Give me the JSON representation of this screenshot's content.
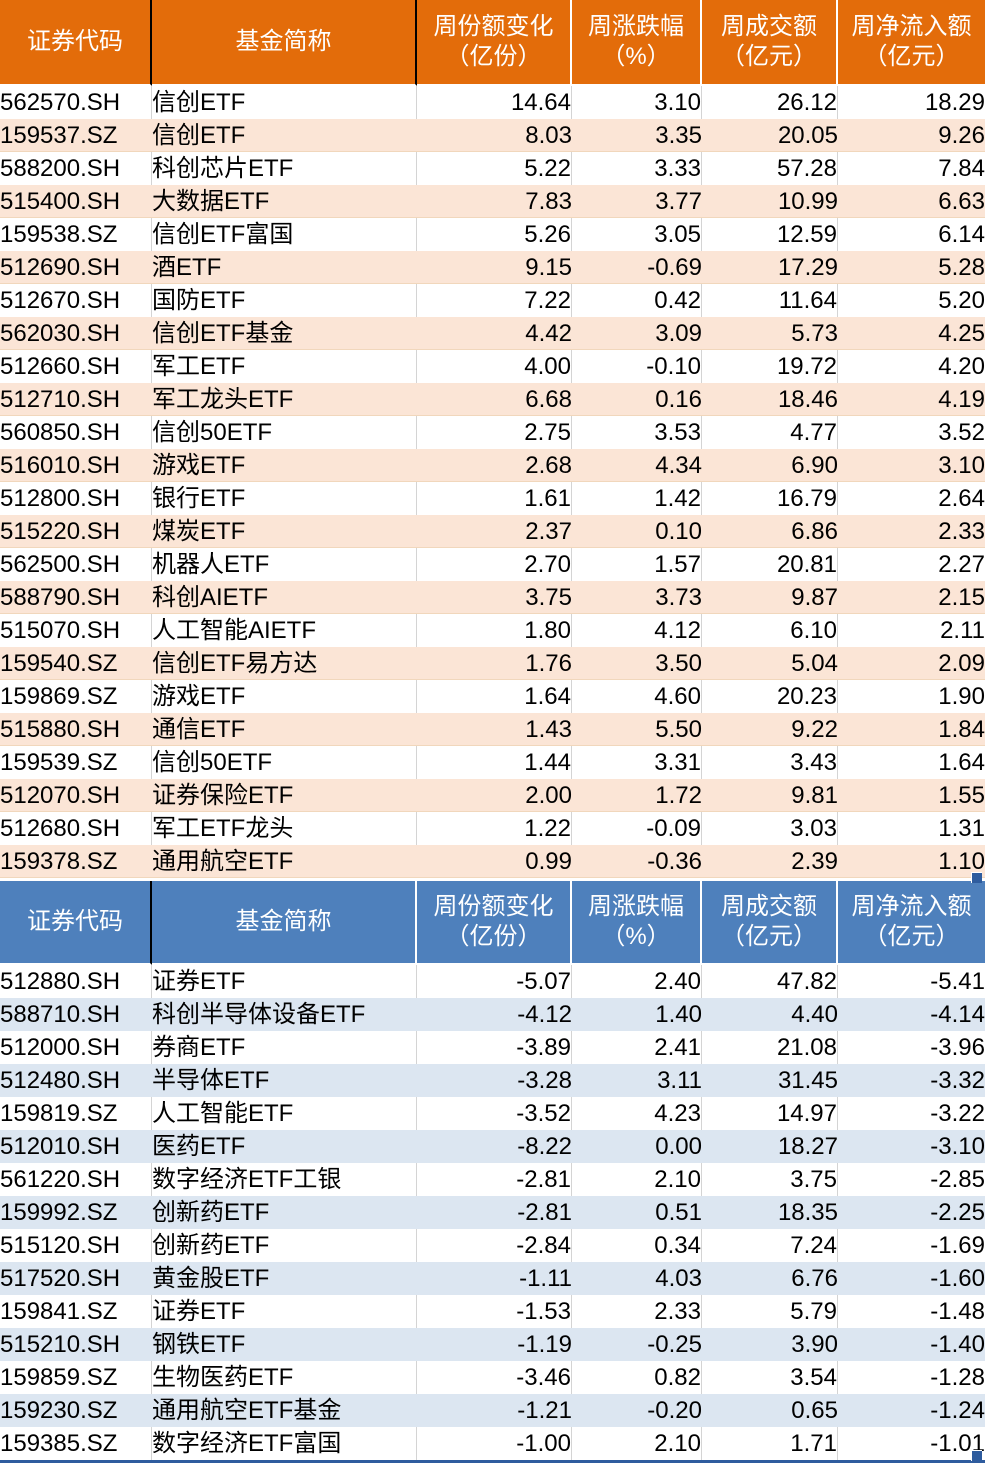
{
  "columns": [
    {
      "label": "证券代码",
      "unit": ""
    },
    {
      "label": "基金简称",
      "unit": ""
    },
    {
      "label": "周份额变化",
      "unit": "（亿份）"
    },
    {
      "label": "周涨跌幅",
      "unit": "（%）"
    },
    {
      "label": "周成交额",
      "unit": "（亿元）"
    },
    {
      "label": "周净流入额",
      "unit": "（亿元）"
    }
  ],
  "colors": {
    "inflow_header_bg": "#E36C0A",
    "inflow_stripe_bg": "#FBE5D6",
    "outflow_header_bg": "#4E80BC",
    "outflow_stripe_bg": "#DCE6F1",
    "header_text": "#FFFFFF",
    "selection_blue": "#2E5C9E",
    "gridline_gray": "#D4D4D4"
  },
  "tables": [
    {
      "name": "weekly-net-inflow-table",
      "header_bg": "#E36C0A",
      "stripe_bg": "#FBE5D6",
      "rows": [
        [
          "562570.SH",
          "信创ETF",
          "14.64",
          "3.10",
          "26.12",
          "18.29"
        ],
        [
          "159537.SZ",
          "信创ETF",
          "8.03",
          "3.35",
          "20.05",
          "9.26"
        ],
        [
          "588200.SH",
          "科创芯片ETF",
          "5.22",
          "3.33",
          "57.28",
          "7.84"
        ],
        [
          "515400.SH",
          "大数据ETF",
          "7.83",
          "3.77",
          "10.99",
          "6.63"
        ],
        [
          "159538.SZ",
          "信创ETF富国",
          "5.26",
          "3.05",
          "12.59",
          "6.14"
        ],
        [
          "512690.SH",
          "酒ETF",
          "9.15",
          "-0.69",
          "17.29",
          "5.28"
        ],
        [
          "512670.SH",
          "国防ETF",
          "7.22",
          "0.42",
          "11.64",
          "5.20"
        ],
        [
          "562030.SH",
          "信创ETF基金",
          "4.42",
          "3.09",
          "5.73",
          "4.25"
        ],
        [
          "512660.SH",
          "军工ETF",
          "4.00",
          "-0.10",
          "19.72",
          "4.20"
        ],
        [
          "512710.SH",
          "军工龙头ETF",
          "6.68",
          "0.16",
          "18.46",
          "4.19"
        ],
        [
          "560850.SH",
          "信创50ETF",
          "2.75",
          "3.53",
          "4.77",
          "3.52"
        ],
        [
          "516010.SH",
          "游戏ETF",
          "2.68",
          "4.34",
          "6.90",
          "3.10"
        ],
        [
          "512800.SH",
          "银行ETF",
          "1.61",
          "1.42",
          "16.79",
          "2.64"
        ],
        [
          "515220.SH",
          "煤炭ETF",
          "2.37",
          "0.10",
          "6.86",
          "2.33"
        ],
        [
          "562500.SH",
          "机器人ETF",
          "2.70",
          "1.57",
          "20.81",
          "2.27"
        ],
        [
          "588790.SH",
          "科创AIETF",
          "3.75",
          "3.73",
          "9.87",
          "2.15"
        ],
        [
          "515070.SH",
          "人工智能AIETF",
          "1.80",
          "4.12",
          "6.10",
          "2.11"
        ],
        [
          "159540.SZ",
          "信创ETF易方达",
          "1.76",
          "3.50",
          "5.04",
          "2.09"
        ],
        [
          "159869.SZ",
          "游戏ETF",
          "1.64",
          "4.60",
          "20.23",
          "1.90"
        ],
        [
          "515880.SH",
          "通信ETF",
          "1.43",
          "5.50",
          "9.22",
          "1.84"
        ],
        [
          "159539.SZ",
          "信创50ETF",
          "1.44",
          "3.31",
          "3.43",
          "1.64"
        ],
        [
          "512070.SH",
          "证券保险ETF",
          "2.00",
          "1.72",
          "9.81",
          "1.55"
        ],
        [
          "512680.SH",
          "军工ETF龙头",
          "1.22",
          "-0.09",
          "3.03",
          "1.31"
        ],
        [
          "159378.SZ",
          "通用航空ETF",
          "0.99",
          "-0.36",
          "2.39",
          "1.10"
        ]
      ]
    },
    {
      "name": "weekly-net-outflow-table",
      "header_bg": "#4E80BC",
      "stripe_bg": "#DCE6F1",
      "rows": [
        [
          "512880.SH",
          "证券ETF",
          "-5.07",
          "2.40",
          "47.82",
          "-5.41"
        ],
        [
          "588710.SH",
          "科创半导体设备ETF",
          "-4.12",
          "1.40",
          "4.40",
          "-4.14"
        ],
        [
          "512000.SH",
          "券商ETF",
          "-3.89",
          "2.41",
          "21.08",
          "-3.96"
        ],
        [
          "512480.SH",
          "半导体ETF",
          "-3.28",
          "3.11",
          "31.45",
          "-3.32"
        ],
        [
          "159819.SZ",
          "人工智能ETF",
          "-3.52",
          "4.23",
          "14.97",
          "-3.22"
        ],
        [
          "512010.SH",
          "医药ETF",
          "-8.22",
          "0.00",
          "18.27",
          "-3.10"
        ],
        [
          "561220.SH",
          "数字经济ETF工银",
          "-2.81",
          "2.10",
          "3.75",
          "-2.85"
        ],
        [
          "159992.SZ",
          "创新药ETF",
          "-2.81",
          "0.51",
          "18.35",
          "-2.25"
        ],
        [
          "515120.SH",
          "创新药ETF",
          "-2.84",
          "0.34",
          "7.24",
          "-1.69"
        ],
        [
          "517520.SH",
          "黄金股ETF",
          "-1.11",
          "4.03",
          "6.76",
          "-1.60"
        ],
        [
          "159841.SZ",
          "证券ETF",
          "-1.53",
          "2.33",
          "5.79",
          "-1.48"
        ],
        [
          "515210.SH",
          "钢铁ETF",
          "-1.19",
          "-0.25",
          "3.90",
          "-1.40"
        ],
        [
          "159859.SZ",
          "生物医药ETF",
          "-3.46",
          "0.82",
          "3.54",
          "-1.28"
        ],
        [
          "159230.SZ",
          "通用航空ETF基金",
          "-1.21",
          "-0.20",
          "0.65",
          "-1.24"
        ],
        [
          "159385.SZ",
          "数字经济ETF富国",
          "-1.00",
          "2.10",
          "1.71",
          "-1.01"
        ]
      ]
    }
  ]
}
